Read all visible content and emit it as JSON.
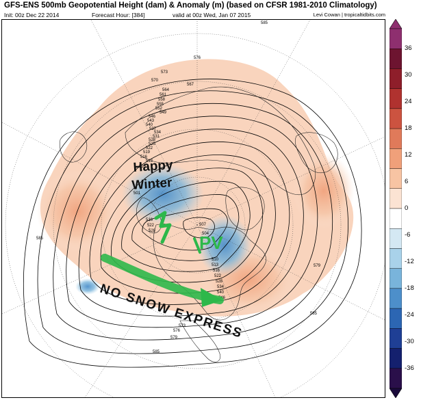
{
  "header": {
    "title": "GFS-ENS 500mb Geopotential Height (dam) & Anomaly (m) (based on CFSR 1981-2010 Climatology)",
    "init": "Init: 00z Dec 22 2014",
    "forecast_hour": "Forecast Hour: [384]",
    "valid": "valid at 00z Wed, Jan 07 2015",
    "credit": "Levi Cowan | tropicaltidbits.com"
  },
  "map": {
    "projection": "north-polar-stereographic",
    "contour_labels": [
      "585",
      "579",
      "576",
      "573",
      "570",
      "567",
      "564",
      "561",
      "558",
      "555",
      "552",
      "549",
      "546",
      "543",
      "540",
      "537",
      "534",
      "531",
      "528",
      "525",
      "522",
      "519",
      "516",
      "513",
      "510",
      "507",
      "504",
      "501"
    ],
    "annotations": {
      "happy": "Happy",
      "winter": "Winter",
      "pv": "PV",
      "no_snow_express": "NO SNOW EXPRESS"
    }
  },
  "colorbar": {
    "ticks": [
      "36",
      "30",
      "24",
      "18",
      "12",
      "6",
      "0",
      "-6",
      "-12",
      "-18",
      "-24",
      "-30",
      "-36"
    ],
    "colors": [
      "#2a0f4a",
      "#14206e",
      "#1f3f95",
      "#2c66b3",
      "#4d8fca",
      "#79b4db",
      "#a9d2ea",
      "#d4e8f3",
      "#ffffff",
      "#fbe3d3",
      "#f7c4a3",
      "#f0a07a",
      "#e07a5a",
      "#cc5340",
      "#b0322f",
      "#8e1e2a",
      "#6d1430",
      "#8e2f6f"
    ],
    "top_cap": "#8e2f6f",
    "bottom_cap": "#1a0a3a"
  }
}
